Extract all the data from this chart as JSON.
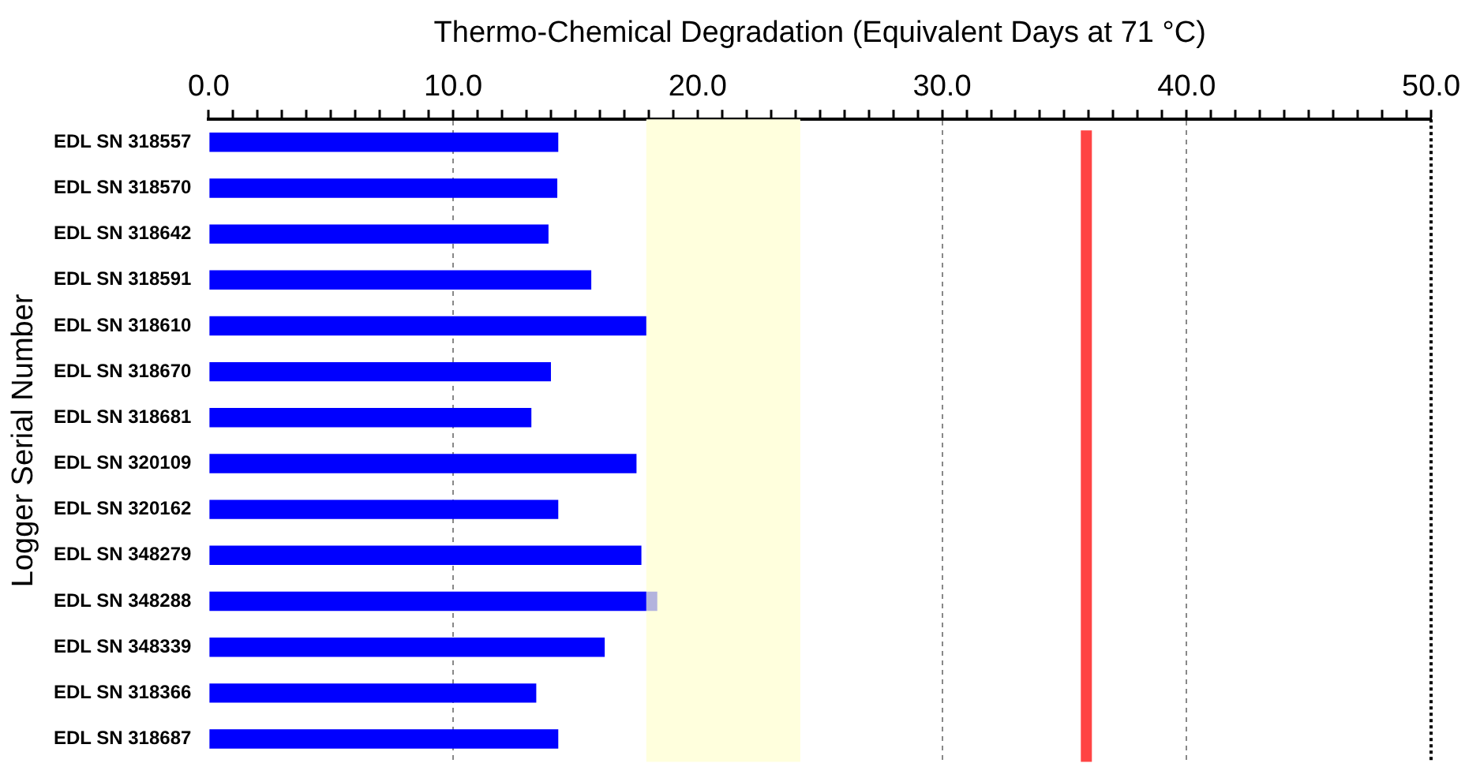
{
  "chart_data": {
    "type": "bar",
    "orientation": "horizontal",
    "stacked": true,
    "xlabel": "Thermo-Chemical Degradation (Equivalent Days at 71 °C)",
    "ylabel": "Logger Serial Number",
    "categories": [
      "EDL SN 318557",
      "EDL SN 318570",
      "EDL SN 318642",
      "EDL SN 318591",
      "EDL SN 318610",
      "EDL SN 318670",
      "EDL SN 318681",
      "EDL SN 320109",
      "EDL SN 320162",
      "EDL SN 348279",
      "EDL SN 348288",
      "EDL SN 348339",
      "EDL SN 318366",
      "EDL SN 318687"
    ],
    "series": [
      {
        "color": "#0000ff",
        "values": [
          14.3,
          14.26,
          13.9,
          15.65,
          17.9,
          14.0,
          13.2,
          17.5,
          14.3,
          17.7,
          17.9,
          16.2,
          13.4,
          14.3
        ]
      },
      {
        "color": "#b3b3dd",
        "values": [
          null,
          null,
          null,
          null,
          null,
          null,
          null,
          null,
          null,
          null,
          0.45,
          null,
          null,
          null
        ]
      }
    ],
    "xlim": [
      0,
      50
    ],
    "xticks": [
      {
        "value": 0,
        "label": "0.0"
      },
      {
        "value": 1,
        "label": null
      },
      {
        "value": 2,
        "label": null
      },
      {
        "value": 3,
        "label": null
      },
      {
        "value": 4,
        "label": null
      },
      {
        "value": 5,
        "label": null
      },
      {
        "value": 6,
        "label": null
      },
      {
        "value": 7,
        "label": null
      },
      {
        "value": 8,
        "label": null
      },
      {
        "value": 9,
        "label": null
      },
      {
        "value": 10,
        "label": "10.0"
      },
      {
        "value": 11,
        "label": null
      },
      {
        "value": 12,
        "label": null
      },
      {
        "value": 13,
        "label": null
      },
      {
        "value": 14,
        "label": null
      },
      {
        "value": 15,
        "label": null
      },
      {
        "value": 16,
        "label": null
      },
      {
        "value": 17,
        "label": null
      },
      {
        "value": 18,
        "label": null
      },
      {
        "value": 19,
        "label": null
      },
      {
        "value": 20,
        "label": "20.0"
      },
      {
        "value": 21,
        "label": null
      },
      {
        "value": 22,
        "label": null
      },
      {
        "value": 23,
        "label": null
      },
      {
        "value": 24,
        "label": null
      },
      {
        "value": 25,
        "label": null
      },
      {
        "value": 26,
        "label": null
      },
      {
        "value": 27,
        "label": null
      },
      {
        "value": 28,
        "label": null
      },
      {
        "value": 29,
        "label": null
      },
      {
        "value": 30,
        "label": "30.0"
      },
      {
        "value": 31,
        "label": null
      },
      {
        "value": 32,
        "label": null
      },
      {
        "value": 33,
        "label": null
      },
      {
        "value": 34,
        "label": null
      },
      {
        "value": 35,
        "label": null
      },
      {
        "value": 36,
        "label": null
      },
      {
        "value": 37,
        "label": null
      },
      {
        "value": 38,
        "label": null
      },
      {
        "value": 39,
        "label": null
      },
      {
        "value": 40,
        "label": "40.0"
      },
      {
        "value": 41,
        "label": null
      },
      {
        "value": 42,
        "label": null
      },
      {
        "value": 43,
        "label": null
      },
      {
        "value": 44,
        "label": null
      },
      {
        "value": 45,
        "label": null
      },
      {
        "value": 46,
        "label": null
      },
      {
        "value": 47,
        "label": null
      },
      {
        "value": 48,
        "label": null
      },
      {
        "value": 49,
        "label": null
      },
      {
        "value": 50,
        "label": "50.0"
      }
    ],
    "grid": "x",
    "ref_lines": [
      {
        "axis": "x",
        "value": 35.9,
        "color": "#ff4444"
      }
    ],
    "bands": [
      {
        "axis": "x",
        "from": 17.9,
        "to": 24.2,
        "color": "#ffffdd"
      }
    ]
  }
}
